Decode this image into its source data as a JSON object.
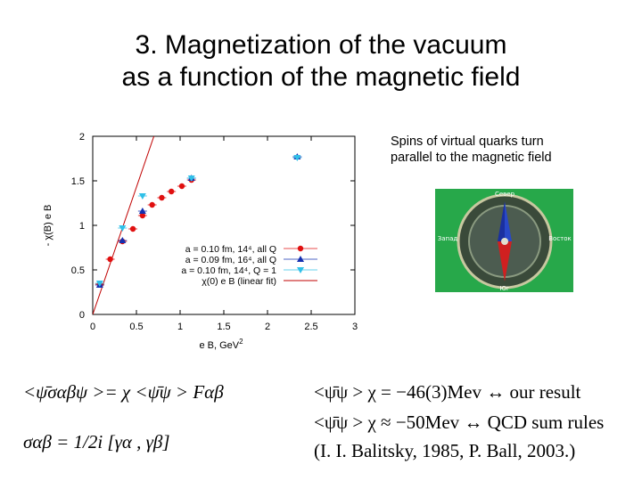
{
  "slide": {
    "title_line1": "3. Magnetization of the vacuum",
    "title_line2": "as a function of the magnetic field",
    "note_line1": "Spins of virtual quarks turn",
    "note_line2": "parallel to the magnetic field",
    "compass_labels": {
      "north": "Север",
      "south": "Юг",
      "west": "Запад",
      "east": "Восток"
    },
    "formula_left1": "<ψ̄σαβψ >= χ <ψ̄ψ > Fαβ",
    "formula_left2": "σαβ = 1/2i [γα , γβ]",
    "formula_right1": "<ψ̄ψ > χ = −46(3)Mev ↔ our result",
    "formula_right2": "<ψ̄ψ > χ ≈ −50Mev ↔ QCD sum rules",
    "formula_right3": "(I. I. Balitsky, 1985, P. Ball, 2003.)",
    "colors": {
      "red": "#e01010",
      "blue": "#1530b0",
      "cyan": "#30c0e8",
      "fit": "#c00000",
      "compass_bg": "#27a84a"
    }
  },
  "chart_data": {
    "type": "scatter",
    "xlabel": "e B, GeV^2",
    "ylabel": "- χ(B) e B",
    "xlim": [
      0,
      3
    ],
    "ylim": [
      0,
      2
    ],
    "xticks": [
      0,
      0.5,
      1,
      1.5,
      2,
      2.5,
      3
    ],
    "yticks": [
      0,
      0.5,
      1,
      1.5,
      2
    ],
    "legend_position": "center",
    "series": [
      {
        "name": "a = 0.10 fm, 14^4, all Q",
        "color": "#e01010",
        "marker": "circle",
        "x": [
          0.08,
          0.2,
          0.34,
          0.46,
          0.57,
          0.68,
          0.79,
          0.9,
          1.02,
          1.13
        ],
        "y": [
          0.34,
          0.62,
          0.82,
          0.96,
          1.11,
          1.23,
          1.31,
          1.38,
          1.44,
          1.51
        ]
      },
      {
        "name": "a = 0.09 fm, 16^4, all Q",
        "color": "#1530b0",
        "marker": "triangle",
        "x": [
          0.08,
          0.34,
          0.57,
          1.13,
          2.34
        ],
        "y": [
          0.33,
          0.83,
          1.16,
          1.53,
          1.77
        ]
      },
      {
        "name": "a = 0.10 fm, 14^4, Q = 1",
        "color": "#30c0e8",
        "marker": "triangle-down",
        "x": [
          0.08,
          0.34,
          0.57,
          1.13,
          2.34
        ],
        "y": [
          0.35,
          0.97,
          1.33,
          1.53,
          1.76
        ]
      },
      {
        "name": "χ(0) e B (linear fit)",
        "type": "line",
        "color": "#c00000",
        "x": [
          0,
          0.7
        ],
        "y": [
          0,
          2.0
        ]
      }
    ]
  }
}
